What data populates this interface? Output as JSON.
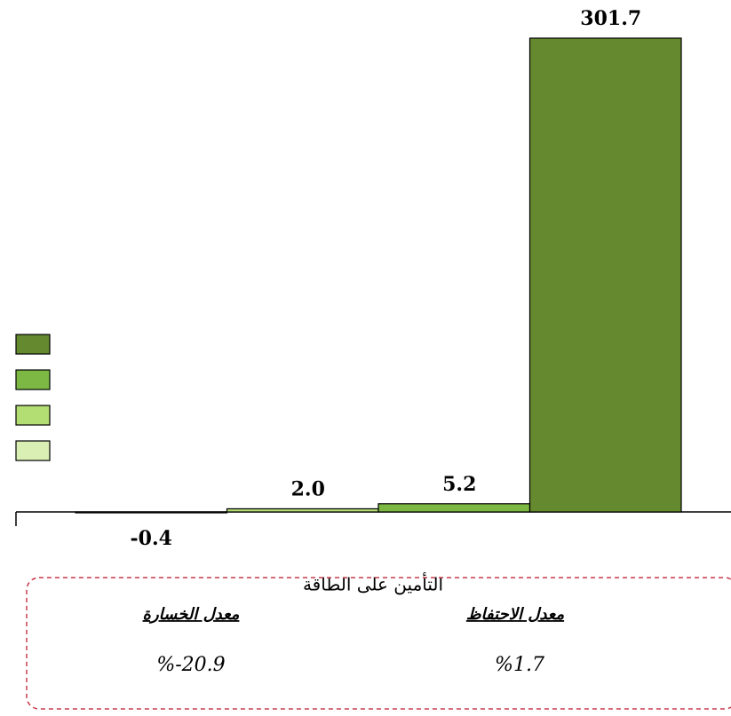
{
  "chart_data": {
    "type": "bar",
    "categories": [
      "التأمين على الطاقة"
    ],
    "series": [
      {
        "color": "#d9efb3",
        "values": [
          -0.4
        ],
        "value_labels": [
          "-0.4"
        ]
      },
      {
        "color": "#b3de74",
        "values": [
          2.0
        ],
        "value_labels": [
          "2.0"
        ]
      },
      {
        "color": "#7cb843",
        "values": [
          5.2
        ],
        "value_labels": [
          "5.2"
        ]
      },
      {
        "color": "#64892f",
        "values": [
          301.7
        ],
        "value_labels": [
          "301.7"
        ]
      }
    ],
    "annotations": {
      "retention_title": "معدل الاحتفاظ",
      "loss_title": "معدل الخسارة",
      "retention_value": "%1.7",
      "loss_value": "%-20.9"
    }
  }
}
